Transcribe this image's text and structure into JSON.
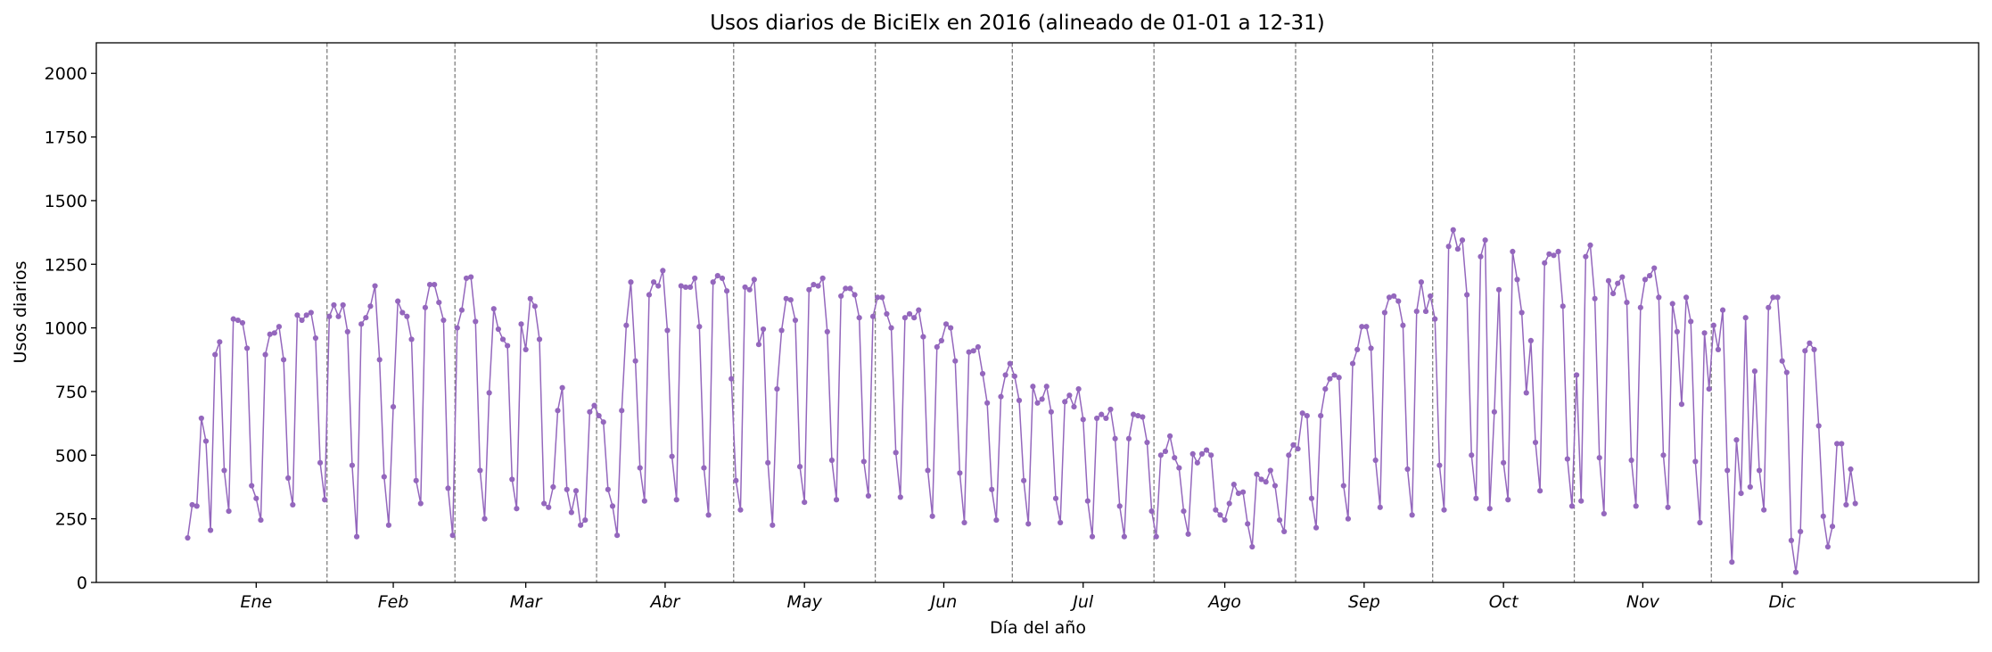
{
  "chart_data": {
    "type": "line",
    "title": "Usos diarios de BiciElx en 2016 (alineado de 01-01 a 12-31)",
    "xlabel": "Día del año",
    "ylabel": "Usos diarios",
    "ylim": [
      0,
      2120
    ],
    "xlim": [
      -19,
      393
    ],
    "yticks": [
      0,
      250,
      500,
      750,
      1000,
      1250,
      1500,
      1750,
      2000
    ],
    "month_labels": [
      "Ene",
      "Feb",
      "Mar",
      "Abr",
      "May",
      "Jun",
      "Jul",
      "Ago",
      "Sep",
      "Oct",
      "Nov",
      "Dic"
    ],
    "month_starts": [
      1,
      32,
      60,
      91,
      121,
      152,
      182,
      213,
      244,
      274,
      305,
      335
    ],
    "month_lengths": [
      31,
      29,
      31,
      30,
      31,
      30,
      31,
      31,
      30,
      31,
      30,
      31
    ],
    "grid": false,
    "legend": "none",
    "colors": {
      "line": "#9467bd",
      "divider": "#808080"
    },
    "series": [
      {
        "x_start": 1,
        "values": [
          175,
          305,
          300,
          645,
          555,
          205,
          895,
          945,
          440,
          280,
          1035,
          1030,
          1020,
          920,
          380,
          330,
          245,
          895,
          975,
          980,
          1005,
          875,
          410,
          305,
          1050,
          1030,
          1050,
          1060,
          960,
          470,
          325,
          1045,
          1090,
          1045,
          1090,
          985,
          460,
          180,
          1015,
          1040,
          1085,
          1165,
          875,
          415,
          225,
          690,
          1105,
          1060,
          1045,
          955,
          400,
          310,
          1080,
          1170,
          1170,
          1100,
          1030,
          370,
          185,
          1000,
          1070,
          1195,
          1200,
          1025,
          440,
          250,
          745,
          1075,
          995,
          955,
          930,
          405,
          290,
          1015,
          915,
          1115,
          1085,
          955,
          310,
          295,
          375,
          675,
          765,
          365,
          275,
          360,
          225,
          245,
          670,
          695,
          655,
          630,
          365,
          300,
          185,
          675,
          1010,
          1180,
          870,
          450,
          320,
          1130,
          1180,
          1165,
          1225,
          990,
          495,
          325,
          1165,
          1160,
          1160,
          1195,
          1005,
          450,
          265,
          1180,
          1205,
          1195,
          1145,
          800,
          400,
          285,
          1160,
          1150,
          1190,
          935,
          995,
          470,
          225,
          760,
          990,
          1115,
          1110,
          1030,
          455,
          315,
          1150,
          1170,
          1165,
          1195,
          985,
          480,
          325,
          1125,
          1155,
          1155,
          1130,
          1040,
          475,
          340,
          1045,
          1120,
          1120,
          1055,
          1000,
          510,
          335,
          1040,
          1055,
          1040,
          1070,
          965,
          440,
          260,
          925,
          950,
          1015,
          1000,
          870,
          430,
          235,
          905,
          910,
          925,
          820,
          705,
          365,
          245,
          730,
          815,
          860,
          810,
          715,
          400,
          230,
          770,
          705,
          720,
          770,
          670,
          330,
          235,
          710,
          735,
          690,
          760,
          640,
          320,
          180,
          645,
          660,
          645,
          680,
          565,
          300,
          180,
          565,
          660,
          655,
          650,
          550,
          280,
          180,
          500,
          515,
          575,
          490,
          450,
          280,
          190,
          505,
          470,
          505,
          520,
          500,
          285,
          265,
          245,
          310,
          385,
          350,
          355,
          230,
          140,
          425,
          405,
          395,
          440,
          380,
          245,
          200,
          500,
          540,
          525,
          665,
          655,
          330,
          215,
          655,
          760,
          800,
          815,
          805,
          380,
          250,
          860,
          915,
          1005,
          1005,
          920,
          480,
          295,
          1060,
          1120,
          1125,
          1105,
          1010,
          445,
          265,
          1065,
          1180,
          1065,
          1125,
          1035,
          460,
          285,
          1320,
          1385,
          1310,
          1345,
          1130,
          500,
          330,
          1280,
          1345,
          290,
          670,
          1150,
          470,
          325,
          1300,
          1190,
          1060,
          745,
          950,
          550,
          360,
          1255,
          1290,
          1285,
          1300,
          1085,
          485,
          300,
          815,
          320,
          1280,
          1325,
          1115,
          490,
          270,
          1185,
          1135,
          1175,
          1200,
          1100,
          480,
          300,
          1080,
          1190,
          1205,
          1235,
          1120,
          500,
          295,
          1095,
          985,
          700,
          1120,
          1025,
          475,
          235,
          980,
          760,
          1010,
          915,
          1070,
          440,
          80,
          560,
          350,
          1040,
          375,
          830,
          440,
          285,
          1080,
          1120,
          1120,
          870,
          825,
          165,
          40,
          200,
          910,
          940,
          915,
          615,
          260,
          140,
          220,
          545,
          545,
          305,
          445,
          310
        ]
      }
    ]
  }
}
